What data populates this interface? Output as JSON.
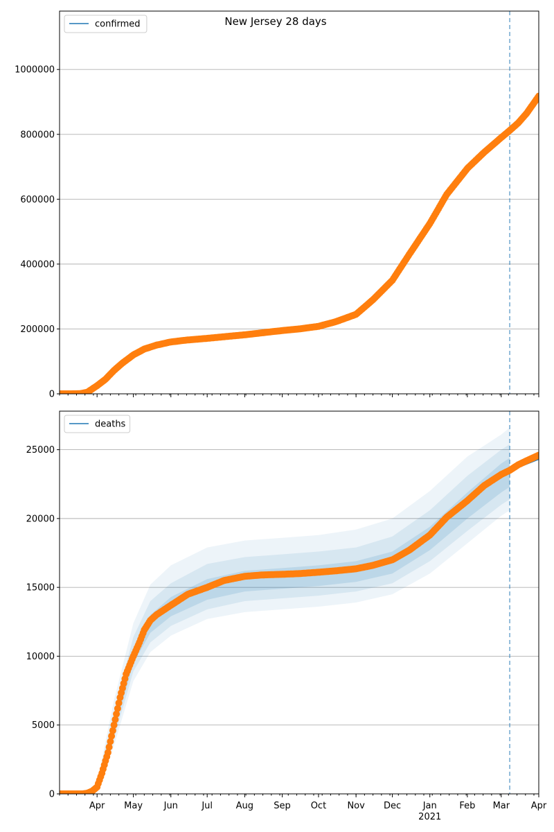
{
  "title": "New Jersey 28 days",
  "colors": {
    "line": "#1f77b4",
    "observed": "#ff7f0e",
    "band": "#1f77b4",
    "vline": "#1f77b4"
  },
  "chart_data": [
    {
      "type": "scatter",
      "name": "confirmed",
      "legend": {
        "label": "confirmed",
        "placement": "upper-left"
      },
      "x_range": [
        "2020-03-01",
        "2021-04-01"
      ],
      "ylim": [
        0,
        1180000
      ],
      "y_ticks": [
        0,
        200000,
        400000,
        600000,
        800000,
        1000000
      ],
      "y_tick_labels": [
        "0",
        "200000",
        "400000",
        "600000",
        "800000",
        "1000000"
      ],
      "grid": "y-major",
      "forecast_start": "2021-03-08",
      "points": [
        [
          "2020-03-01",
          0
        ],
        [
          "2020-03-10",
          0
        ],
        [
          "2020-03-18",
          500
        ],
        [
          "2020-03-24",
          5000
        ],
        [
          "2020-03-28",
          15000
        ],
        [
          "2020-04-01",
          25000
        ],
        [
          "2020-04-08",
          45000
        ],
        [
          "2020-04-15",
          72000
        ],
        [
          "2020-04-22",
          95000
        ],
        [
          "2020-05-01",
          120000
        ],
        [
          "2020-05-10",
          138000
        ],
        [
          "2020-05-20",
          150000
        ],
        [
          "2020-06-01",
          160000
        ],
        [
          "2020-06-15",
          166000
        ],
        [
          "2020-07-01",
          171000
        ],
        [
          "2020-07-15",
          176000
        ],
        [
          "2020-08-01",
          182000
        ],
        [
          "2020-08-15",
          188000
        ],
        [
          "2020-09-01",
          195000
        ],
        [
          "2020-09-15",
          200000
        ],
        [
          "2020-10-01",
          208000
        ],
        [
          "2020-10-15",
          222000
        ],
        [
          "2020-11-01",
          245000
        ],
        [
          "2020-11-15",
          290000
        ],
        [
          "2020-12-01",
          350000
        ],
        [
          "2020-12-15",
          430000
        ],
        [
          "2021-01-01",
          525000
        ],
        [
          "2021-01-15",
          615000
        ],
        [
          "2021-02-01",
          695000
        ],
        [
          "2021-02-15",
          745000
        ],
        [
          "2021-03-01",
          790000
        ],
        [
          "2021-03-08",
          812000
        ],
        [
          "2021-03-15",
          835000
        ],
        [
          "2021-03-22",
          865000
        ],
        [
          "2021-04-01",
          918000
        ]
      ]
    },
    {
      "type": "scatter",
      "name": "deaths",
      "legend": {
        "label": "deaths",
        "placement": "upper-left"
      },
      "x_range": [
        "2020-03-01",
        "2021-04-01"
      ],
      "ylim": [
        0,
        27800
      ],
      "y_ticks": [
        0,
        5000,
        10000,
        15000,
        20000,
        25000
      ],
      "y_tick_labels": [
        "0",
        "5000",
        "10000",
        "15000",
        "20000",
        "25000"
      ],
      "grid": "y-major",
      "forecast_start": "2021-03-08",
      "x_tick_labels": [
        {
          "date": "2020-04-01",
          "label": "Apr"
        },
        {
          "date": "2020-05-01",
          "label": "May"
        },
        {
          "date": "2020-06-01",
          "label": "Jun"
        },
        {
          "date": "2020-07-01",
          "label": "Jul"
        },
        {
          "date": "2020-08-01",
          "label": "Aug"
        },
        {
          "date": "2020-09-01",
          "label": "Sep"
        },
        {
          "date": "2020-10-01",
          "label": "Oct"
        },
        {
          "date": "2020-11-01",
          "label": "Nov"
        },
        {
          "date": "2020-12-01",
          "label": "Dec"
        },
        {
          "date": "2021-01-01",
          "label": "Jan",
          "sublabel": "2021"
        },
        {
          "date": "2021-02-01",
          "label": "Feb"
        },
        {
          "date": "2021-03-01",
          "label": "Mar"
        },
        {
          "date": "2021-04-01",
          "label": "Apr"
        }
      ],
      "points": [
        [
          "2020-03-01",
          0
        ],
        [
          "2020-03-10",
          0
        ],
        [
          "2020-03-20",
          0
        ],
        [
          "2020-03-24",
          50
        ],
        [
          "2020-03-28",
          200
        ],
        [
          "2020-04-01",
          500
        ],
        [
          "2020-04-05",
          1500
        ],
        [
          "2020-04-10",
          3000
        ],
        [
          "2020-04-15",
          5000
        ],
        [
          "2020-04-20",
          7000
        ],
        [
          "2020-04-25",
          8700
        ],
        [
          "2020-05-01",
          10000
        ],
        [
          "2020-05-06",
          11000
        ],
        [
          "2020-05-10",
          11900
        ],
        [
          "2020-05-15",
          12600
        ],
        [
          "2020-05-20",
          13000
        ],
        [
          "2020-06-01",
          13700
        ],
        [
          "2020-06-15",
          14500
        ],
        [
          "2020-07-01",
          15000
        ],
        [
          "2020-07-15",
          15500
        ],
        [
          "2020-08-01",
          15800
        ],
        [
          "2020-08-15",
          15900
        ],
        [
          "2020-09-01",
          15950
        ],
        [
          "2020-09-15",
          16000
        ],
        [
          "2020-10-01",
          16100
        ],
        [
          "2020-10-15",
          16200
        ],
        [
          "2020-11-01",
          16350
        ],
        [
          "2020-11-15",
          16600
        ],
        [
          "2020-12-01",
          17000
        ],
        [
          "2020-12-15",
          17700
        ],
        [
          "2021-01-01",
          18800
        ],
        [
          "2021-01-15",
          20100
        ],
        [
          "2021-02-01",
          21300
        ],
        [
          "2021-02-15",
          22400
        ],
        [
          "2021-03-01",
          23200
        ],
        [
          "2021-03-08",
          23500
        ],
        [
          "2021-03-15",
          23900
        ],
        [
          "2021-03-22",
          24200
        ],
        [
          "2021-04-01",
          24600
        ]
      ],
      "line": [
        [
          "2020-03-01",
          0
        ],
        [
          "2020-03-20",
          0
        ],
        [
          "2020-03-28",
          250
        ],
        [
          "2020-04-01",
          500
        ],
        [
          "2020-04-05",
          1500
        ],
        [
          "2020-04-10",
          3000
        ],
        [
          "2020-04-15",
          5000
        ],
        [
          "2020-04-20",
          7000
        ],
        [
          "2020-04-25",
          8700
        ],
        [
          "2020-05-01",
          10000
        ],
        [
          "2020-05-10",
          11800
        ],
        [
          "2020-05-20",
          12800
        ],
        [
          "2020-06-01",
          13600
        ],
        [
          "2020-06-15",
          14300
        ],
        [
          "2020-07-01",
          14900
        ],
        [
          "2020-07-15",
          15300
        ],
        [
          "2020-08-01",
          15600
        ],
        [
          "2020-08-15",
          15750
        ],
        [
          "2020-09-01",
          15850
        ],
        [
          "2020-09-15",
          15950
        ],
        [
          "2020-10-01",
          16050
        ],
        [
          "2020-10-15",
          16200
        ],
        [
          "2020-11-01",
          16400
        ],
        [
          "2020-11-15",
          16700
        ],
        [
          "2020-12-01",
          17100
        ],
        [
          "2020-12-15",
          17800
        ],
        [
          "2021-01-01",
          18900
        ],
        [
          "2021-01-15",
          20100
        ],
        [
          "2021-02-01",
          21300
        ],
        [
          "2021-02-15",
          22300
        ],
        [
          "2021-03-01",
          23100
        ],
        [
          "2021-03-08",
          23400
        ],
        [
          "2021-03-15",
          23700
        ],
        [
          "2021-03-22",
          23950
        ],
        [
          "2021-04-01",
          24300
        ]
      ],
      "bands": [
        {
          "level": "inner",
          "lower": [
            [
              "2020-03-01",
              0
            ],
            [
              "2020-03-20",
              0
            ],
            [
              "2020-04-01",
              400
            ],
            [
              "2020-04-15",
              4500
            ],
            [
              "2020-05-01",
              9500
            ],
            [
              "2020-05-15",
              11700
            ],
            [
              "2020-06-01",
              12900
            ],
            [
              "2020-07-01",
              14100
            ],
            [
              "2020-08-01",
              14700
            ],
            [
              "2020-09-01",
              14900
            ],
            [
              "2020-10-01",
              15100
            ],
            [
              "2020-11-01",
              15400
            ],
            [
              "2020-12-01",
              16000
            ],
            [
              "2021-01-01",
              17700
            ],
            [
              "2021-02-01",
              20000
            ],
            [
              "2021-03-01",
              21900
            ],
            [
              "2021-03-08",
              22300
            ]
          ],
          "upper": [
            [
              "2020-03-01",
              0
            ],
            [
              "2020-03-20",
              0
            ],
            [
              "2020-04-01",
              600
            ],
            [
              "2020-04-15",
              5500
            ],
            [
              "2020-05-01",
              10600
            ],
            [
              "2020-05-15",
              13000
            ],
            [
              "2020-06-01",
              14300
            ],
            [
              "2020-07-01",
              15600
            ],
            [
              "2020-08-01",
              16200
            ],
            [
              "2020-09-01",
              16400
            ],
            [
              "2020-10-01",
              16600
            ],
            [
              "2020-11-01",
              16900
            ],
            [
              "2020-12-01",
              17600
            ],
            [
              "2021-01-01",
              19400
            ],
            [
              "2021-02-01",
              21900
            ],
            [
              "2021-03-01",
              24000
            ],
            [
              "2021-03-08",
              24400
            ]
          ]
        },
        {
          "level": "middle",
          "lower": [
            [
              "2020-03-01",
              0
            ],
            [
              "2020-03-20",
              0
            ],
            [
              "2020-04-01",
              300
            ],
            [
              "2020-04-15",
              4000
            ],
            [
              "2020-05-01",
              8900
            ],
            [
              "2020-05-15",
              11000
            ],
            [
              "2020-06-01",
              12200
            ],
            [
              "2020-07-01",
              13400
            ],
            [
              "2020-08-01",
              14000
            ],
            [
              "2020-09-01",
              14200
            ],
            [
              "2020-10-01",
              14400
            ],
            [
              "2020-11-01",
              14700
            ],
            [
              "2020-12-01",
              15300
            ],
            [
              "2021-01-01",
              16900
            ],
            [
              "2021-02-01",
              19100
            ],
            [
              "2021-03-01",
              21000
            ],
            [
              "2021-03-08",
              21400
            ]
          ],
          "upper": [
            [
              "2020-03-01",
              0
            ],
            [
              "2020-03-20",
              0
            ],
            [
              "2020-04-01",
              700
            ],
            [
              "2020-04-15",
              6000
            ],
            [
              "2020-05-01",
              11400
            ],
            [
              "2020-05-15",
              14000
            ],
            [
              "2020-06-01",
              15300
            ],
            [
              "2020-07-01",
              16700
            ],
            [
              "2020-08-01",
              17200
            ],
            [
              "2020-09-01",
              17400
            ],
            [
              "2020-10-01",
              17600
            ],
            [
              "2020-11-01",
              17900
            ],
            [
              "2020-12-01",
              18700
            ],
            [
              "2021-01-01",
              20600
            ],
            [
              "2021-02-01",
              23100
            ],
            [
              "2021-03-01",
              25000
            ],
            [
              "2021-03-08",
              25400
            ]
          ]
        },
        {
          "level": "outer",
          "lower": [
            [
              "2020-03-01",
              0
            ],
            [
              "2020-03-20",
              0
            ],
            [
              "2020-04-01",
              200
            ],
            [
              "2020-04-15",
              3500
            ],
            [
              "2020-05-01",
              8200
            ],
            [
              "2020-05-15",
              10300
            ],
            [
              "2020-06-01",
              11500
            ],
            [
              "2020-07-01",
              12700
            ],
            [
              "2020-08-01",
              13200
            ],
            [
              "2020-09-01",
              13400
            ],
            [
              "2020-10-01",
              13600
            ],
            [
              "2020-11-01",
              13900
            ],
            [
              "2020-12-01",
              14500
            ],
            [
              "2021-01-01",
              16000
            ],
            [
              "2021-02-01",
              18200
            ],
            [
              "2021-03-01",
              20200
            ],
            [
              "2021-03-08",
              20600
            ]
          ],
          "upper": [
            [
              "2020-03-01",
              0
            ],
            [
              "2020-03-20",
              0
            ],
            [
              "2020-04-01",
              800
            ],
            [
              "2020-04-15",
              6800
            ],
            [
              "2020-05-01",
              12400
            ],
            [
              "2020-05-15",
              15200
            ],
            [
              "2020-06-01",
              16600
            ],
            [
              "2020-07-01",
              17900
            ],
            [
              "2020-08-01",
              18400
            ],
            [
              "2020-09-01",
              18600
            ],
            [
              "2020-10-01",
              18800
            ],
            [
              "2020-11-01",
              19200
            ],
            [
              "2020-12-01",
              20000
            ],
            [
              "2021-01-01",
              22000
            ],
            [
              "2021-02-01",
              24500
            ],
            [
              "2021-03-01",
              26100
            ],
            [
              "2021-03-08",
              26600
            ]
          ]
        }
      ]
    }
  ]
}
